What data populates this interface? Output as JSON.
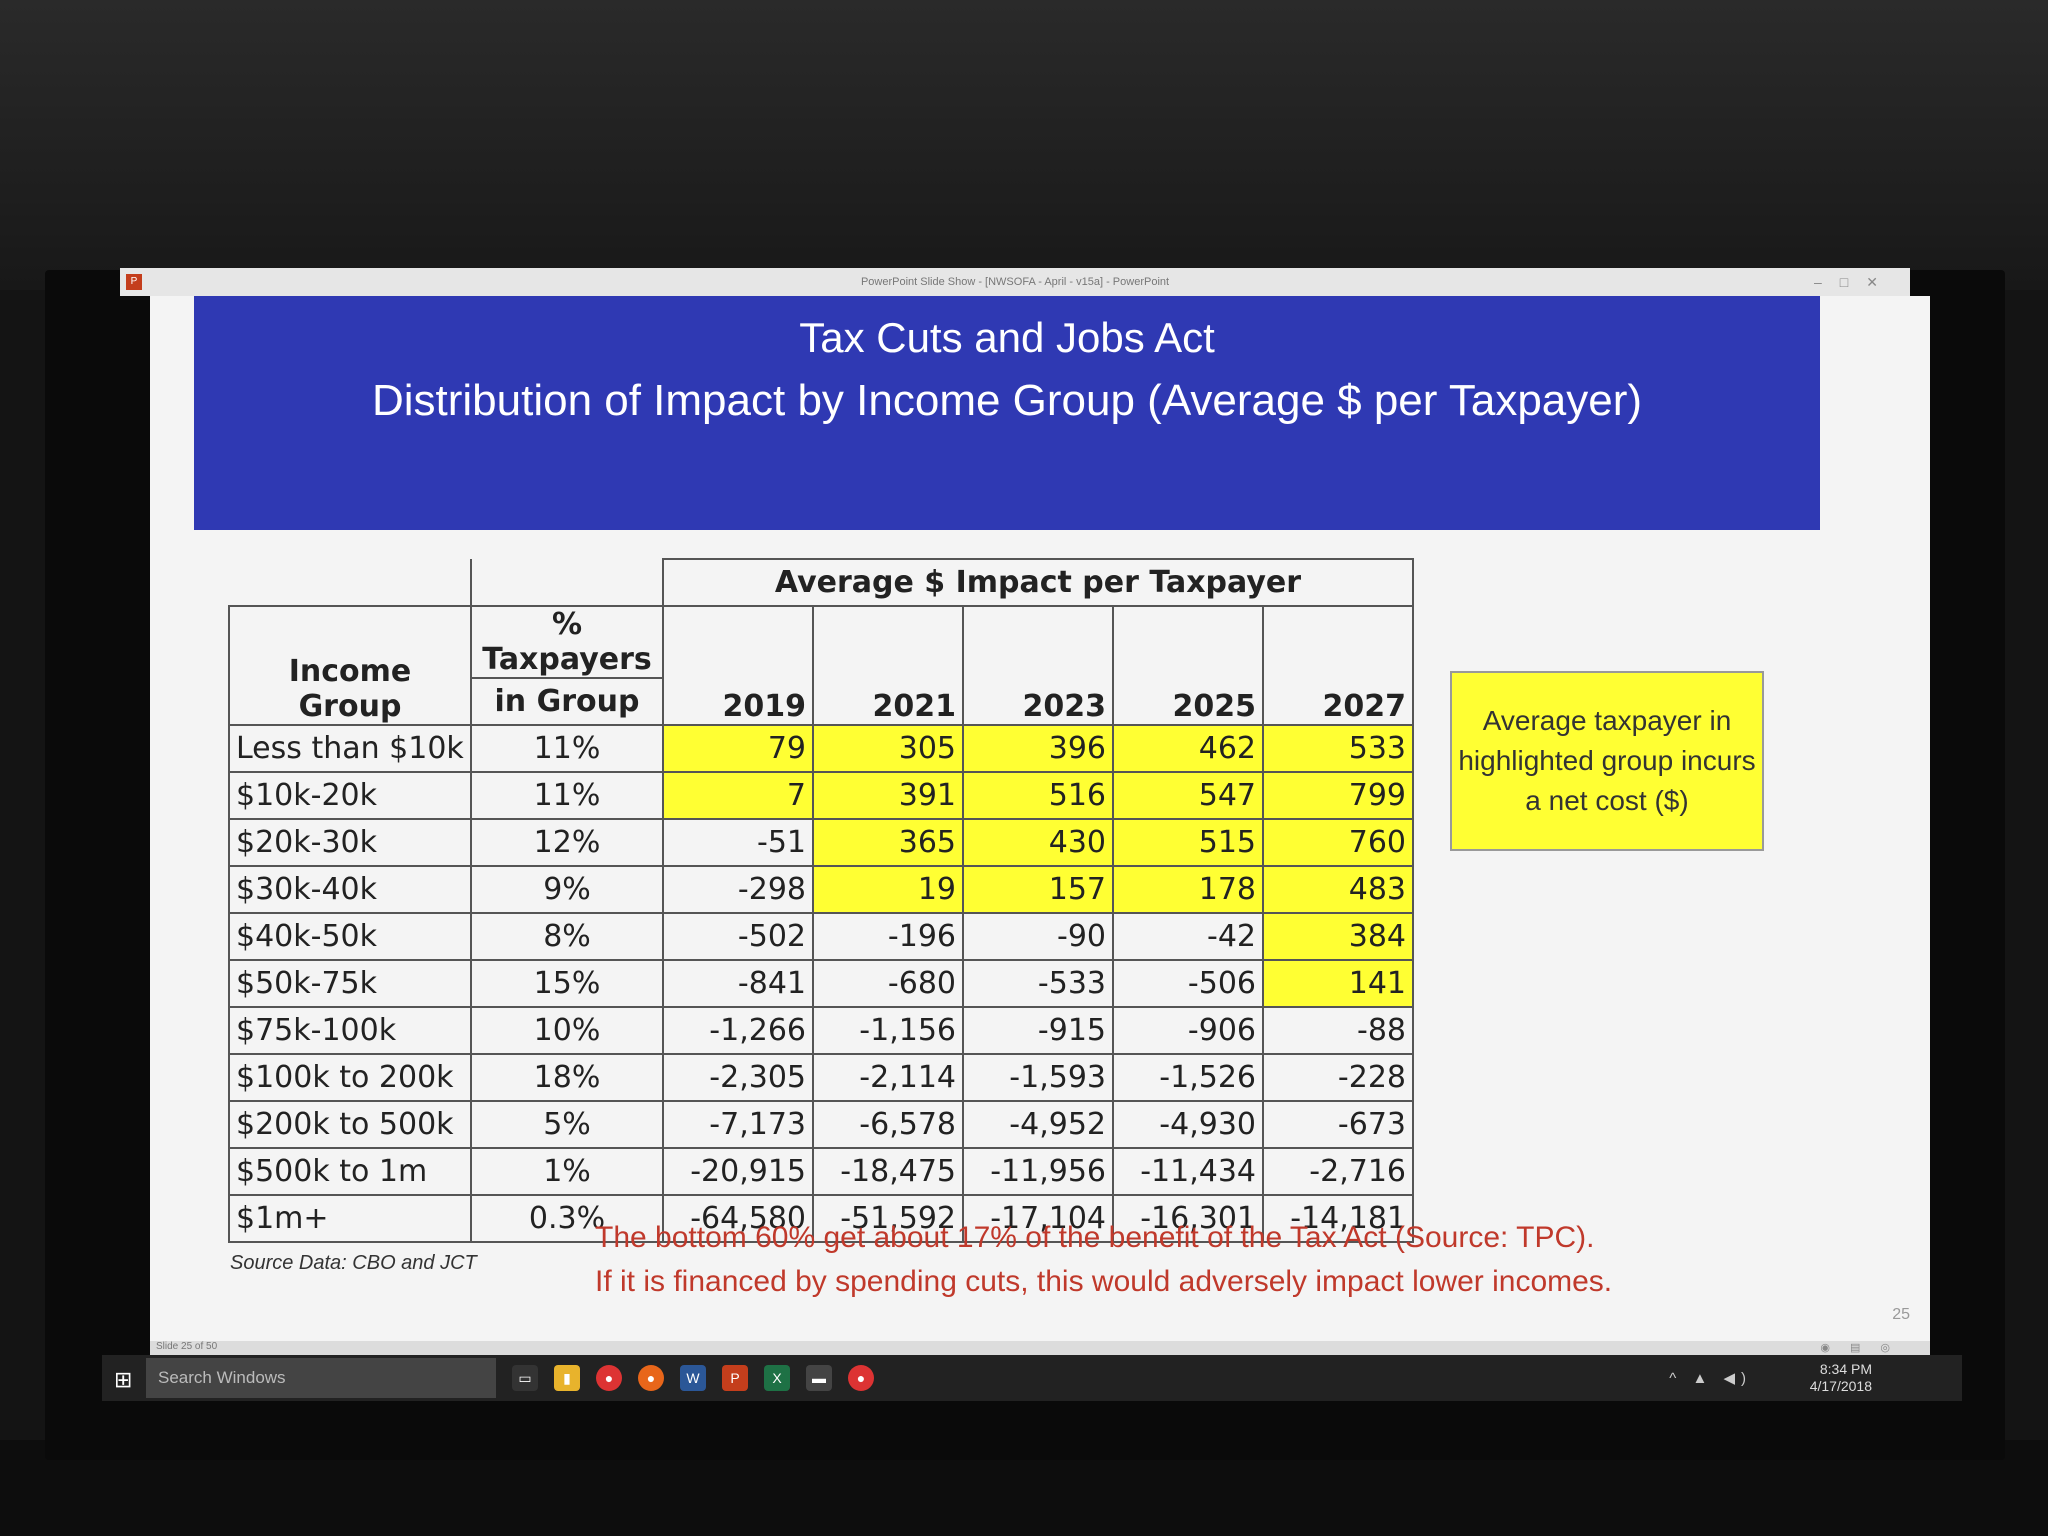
{
  "window": {
    "title": "PowerPoint Slide Show - [NWSOFA - April - v15a] - PowerPoint"
  },
  "slide": {
    "title_line1": "Tax Cuts and Jobs Act",
    "title_line2": "Distribution of Impact by Income Group (Average $ per Taxpayer)",
    "table": {
      "col_group_header": "Income Group",
      "col_pct_header_1": "% Taxpayers",
      "col_pct_header_2": "in Group",
      "impact_header": "Average $ Impact per Taxpayer",
      "years": [
        "2019",
        "2021",
        "2023",
        "2025",
        "2027"
      ],
      "rows": [
        {
          "group": "Less than $10k",
          "pct": "11%",
          "values": [
            "79",
            "305",
            "396",
            "462",
            "533"
          ]
        },
        {
          "group": "$10k-20k",
          "pct": "11%",
          "values": [
            "7",
            "391",
            "516",
            "547",
            "799"
          ]
        },
        {
          "group": "$20k-30k",
          "pct": "12%",
          "values": [
            "-51",
            "365",
            "430",
            "515",
            "760"
          ]
        },
        {
          "group": "$30k-40k",
          "pct": "9%",
          "values": [
            "-298",
            "19",
            "157",
            "178",
            "483"
          ]
        },
        {
          "group": "$40k-50k",
          "pct": "8%",
          "values": [
            "-502",
            "-196",
            "-90",
            "-42",
            "384"
          ]
        },
        {
          "group": "$50k-75k",
          "pct": "15%",
          "values": [
            "-841",
            "-680",
            "-533",
            "-506",
            "141"
          ]
        },
        {
          "group": "$75k-100k",
          "pct": "10%",
          "values": [
            "-1,266",
            "-1,156",
            "-915",
            "-906",
            "-88"
          ]
        },
        {
          "group": "$100k to 200k",
          "pct": "18%",
          "values": [
            "-2,305",
            "-2,114",
            "-1,593",
            "-1,526",
            "-228"
          ]
        },
        {
          "group": "$200k to 500k",
          "pct": "5%",
          "values": [
            "-7,173",
            "-6,578",
            "-4,952",
            "-4,930",
            "-673"
          ]
        },
        {
          "group": "$500k to 1m",
          "pct": "1%",
          "values": [
            "-20,915",
            "-18,475",
            "-11,956",
            "-11,434",
            "-2,716"
          ]
        },
        {
          "group": "$1m+",
          "pct": "0.3%",
          "values": [
            "-64,580",
            "-51,592",
            "-17,104",
            "-16,301",
            "-14,181"
          ]
        }
      ],
      "highlight_color": "#ffff33"
    },
    "note": "Average taxpayer in highlighted group incurs a net cost ($)",
    "source": "Source Data: CBO and JCT",
    "footer_line1": "The bottom 60% get about 17% of the benefit of the Tax Act (Source: TPC).",
    "footer_line2": "If it is financed by spending cuts, this would adversely impact lower incomes.",
    "slide_number": "25"
  },
  "statusbar": {
    "page_indicator": "Slide 25 of 50"
  },
  "taskbar": {
    "search_placeholder": "Search Windows",
    "time": "8:34 PM",
    "date": "4/17/2018"
  },
  "colors": {
    "banner": "#2f39b3",
    "footer_text": "#c0392b"
  }
}
